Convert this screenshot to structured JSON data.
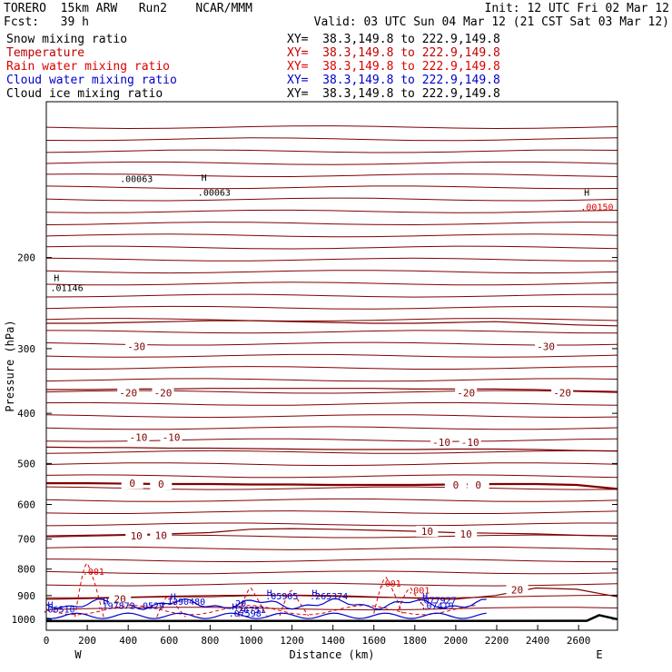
{
  "header": {
    "model": "TORERO  15km ARW   Run2    NCAR/MMM",
    "init": "Init: 12 UTC Fri 02 Mar 12",
    "fcst": "Fcst:   39 h",
    "valid": "Valid: 03 UTC Sun 04 Mar 12 (21 CST Sat 03 Mar 12)"
  },
  "legend": [
    {
      "name": "Snow mixing ratio",
      "color": "#000000",
      "xy": "XY=  38.3,149.8 to 222.9,149.8"
    },
    {
      "name": "Temperature",
      "color": "#a00000",
      "xy": "XY=  38.3,149.8 to 222.9,149.8"
    },
    {
      "name": "Rain water mixing ratio",
      "color": "#dd0000",
      "xy": "XY=  38.3,149.8 to 222.9,149.8"
    },
    {
      "name": "Cloud water mixing ratio",
      "color": "#0000cc",
      "xy": "XY=  38.3,149.8 to 222.9,149.8"
    },
    {
      "name": "Cloud ice mixing ratio",
      "color": "#000000",
      "xy": "XY=  38.3,149.8 to 222.9,149.8"
    }
  ],
  "chart_data": {
    "type": "contour",
    "xlabel": "Distance (km)",
    "ylabel": "Pressure (hPa)",
    "x_ticks": [
      0,
      200,
      400,
      600,
      800,
      1000,
      1200,
      1400,
      1600,
      1800,
      2000,
      2200,
      2400,
      2600
    ],
    "y_ticks": [
      200,
      300,
      400,
      500,
      600,
      700,
      800,
      900,
      1000
    ],
    "xlim": [
      0,
      2790
    ],
    "ylim": [
      1050,
      100
    ],
    "y_scale": "log",
    "left_end_label": "W",
    "right_end_label": "E",
    "colors": {
      "temperature": "#800000",
      "rain": "#dd0000",
      "cloud_water": "#0000cc",
      "ground": "#000000"
    },
    "temperature_contours": [
      {
        "level": -30,
        "label": "-30",
        "p": [
          268,
          268,
          267,
          266,
          265,
          265,
          266,
          267,
          268,
          268,
          267,
          266,
          268,
          270,
          271
        ]
      },
      {
        "level": -20,
        "label": "-20",
        "p": [
          360,
          360,
          359,
          359,
          358,
          358,
          358,
          358,
          358,
          359,
          359,
          359,
          360,
          362,
          363
        ]
      },
      {
        "level": -10,
        "label": "-10",
        "p": [
          465,
          466,
          466,
          467,
          467,
          468,
          469,
          470,
          470,
          470,
          469,
          469,
          470,
          472,
          473
        ]
      },
      {
        "level": 0,
        "label": "0",
        "p": [
          546,
          546,
          547,
          548,
          548,
          549,
          549,
          550,
          550,
          550,
          549,
          548,
          548,
          550,
          560
        ]
      },
      {
        "level": 10,
        "label": "10",
        "p": [
          690,
          688,
          686,
          684,
          680,
          670,
          668,
          670,
          673,
          676,
          680,
          682,
          684,
          688,
          690
        ]
      },
      {
        "level": 20,
        "label": "20",
        "p": [
          915,
          912,
          908,
          905,
          905,
          900,
          898,
          900,
          905,
          910,
          915,
          900,
          870,
          875,
          905
        ]
      }
    ],
    "temperature_labels": [
      {
        "text": "-30",
        "x": 440,
        "p": 297
      },
      {
        "text": "-30",
        "x": 2440,
        "p": 297
      },
      {
        "text": "-20",
        "x": 400,
        "p": 365
      },
      {
        "text": "-20",
        "x": 570,
        "p": 365
      },
      {
        "text": "-20",
        "x": 2050,
        "p": 365
      },
      {
        "text": "-20",
        "x": 2520,
        "p": 365
      },
      {
        "text": "-10",
        "x": 450,
        "p": 445
      },
      {
        "text": "-10",
        "x": 610,
        "p": 445
      },
      {
        "text": "-10",
        "x": 1930,
        "p": 455
      },
      {
        "text": "-10",
        "x": 2070,
        "p": 455
      },
      {
        "text": "0",
        "x": 420,
        "p": 546
      },
      {
        "text": "0",
        "x": 560,
        "p": 548
      },
      {
        "text": "0",
        "x": 2000,
        "p": 550
      },
      {
        "text": "0",
        "x": 2110,
        "p": 550
      },
      {
        "text": "10",
        "x": 440,
        "p": 690
      },
      {
        "text": "10",
        "x": 560,
        "p": 688
      },
      {
        "text": "10",
        "x": 1860,
        "p": 676
      },
      {
        "text": "10",
        "x": 2050,
        "p": 684
      },
      {
        "text": "20",
        "x": 360,
        "p": 913
      },
      {
        "text": "20",
        "x": 2300,
        "p": 878
      }
    ],
    "annotations": [
      {
        "text": "H",
        "x": 770,
        "p": 142
      },
      {
        "text": ".00063",
        "x": 820,
        "p": 152
      },
      {
        "text": ".00063",
        "x": 440,
        "p": 143
      },
      {
        "text": "H",
        "x": 2640,
        "p": 152
      },
      {
        "text": ".00150",
        "x": 2690,
        "p": 162
      },
      {
        "text": "H",
        "x": 50,
        "p": 222
      },
      {
        "text": ".01146",
        "x": 100,
        "p": 232
      },
      {
        "text": ".001",
        "x": 230,
        "p": 820
      },
      {
        "text": ".001",
        "x": 1680,
        "p": 865
      },
      {
        "text": ".001",
        "x": 1820,
        "p": 892
      },
      {
        "text": "H",
        "x": 620,
        "p": 918
      },
      {
        "text": ".1390480",
        "x": 670,
        "p": 938
      },
      {
        "text": "H",
        "x": 1090,
        "p": 902
      },
      {
        "text": ".05905",
        "x": 1150,
        "p": 915
      },
      {
        "text": "H",
        "x": 1310,
        "p": 902
      },
      {
        "text": ".265374",
        "x": 1380,
        "p": 915
      },
      {
        "text": "H",
        "x": 1850,
        "p": 915
      },
      {
        "text": ".077927",
        "x": 1910,
        "p": 932
      },
      {
        "text": "H",
        "x": 290,
        "p": 935
      },
      {
        "text": ".197872",
        "x": 340,
        "p": 954
      },
      {
        "text": ".0529",
        "x": 510,
        "p": 954
      },
      {
        "text": "20",
        "x": 950,
        "p": 945
      },
      {
        "text": "H",
        "x": 920,
        "p": 958
      },
      {
        "text": ".26751",
        "x": 990,
        "p": 972
      },
      {
        "text": ".07598",
        "x": 970,
        "p": 988
      },
      {
        "text": ".07419",
        "x": 1910,
        "p": 954
      },
      {
        "text": "H",
        "x": 20,
        "p": 952
      },
      {
        "text": ".06510",
        "x": 60,
        "p": 970
      }
    ]
  }
}
